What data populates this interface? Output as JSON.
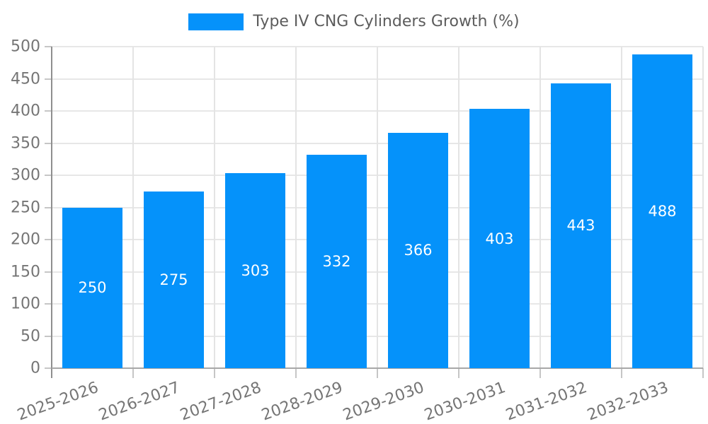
{
  "chart_data": {
    "type": "bar",
    "title": "Type IV CNG Cylinders Growth (%)",
    "categories": [
      "2025-2026",
      "2026-2027",
      "2027-2028",
      "2028-2029",
      "2029-2030",
      "2030-2031",
      "2031-2032",
      "2032-2033"
    ],
    "values": [
      250,
      275,
      303,
      332,
      366,
      403,
      443,
      488
    ],
    "series": [
      {
        "name": "Type IV CNG Cylinders Growth (%)",
        "values": [
          250,
          275,
          303,
          332,
          366,
          403,
          443,
          488
        ]
      }
    ],
    "value_labels": [
      "250",
      "275",
      "303",
      "332",
      "366",
      "403",
      "443",
      "488"
    ],
    "xlabel": "",
    "ylabel": "",
    "ylim": [
      0,
      500
    ],
    "ytick_step": 50,
    "yticks": [
      0,
      50,
      100,
      150,
      200,
      250,
      300,
      350,
      400,
      450,
      500
    ],
    "grid": true,
    "legend_position": "top",
    "colors": {
      "bar": "#0592fa",
      "value_label": "#ffffff",
      "axis_text": "#757575",
      "legend_text": "#5c5c5c",
      "h_gridline": "#e7e7e7",
      "v_gridline": "#e4e4e4",
      "y_axis_line": "#8f8f8f",
      "x_axis_line": "#a8a8a8",
      "tick_mark": "#c6c6c6"
    }
  }
}
